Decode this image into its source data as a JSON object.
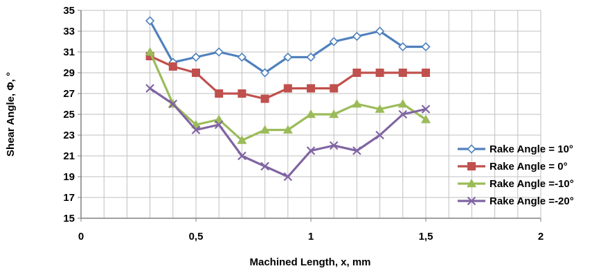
{
  "chart_data": {
    "type": "line",
    "title": "",
    "xlabel": "Machined Length, x, mm",
    "ylabel": "Shear Angle, Φ, °",
    "xlim": [
      0,
      2
    ],
    "ylim": [
      15,
      35
    ],
    "x_ticks": [
      0,
      0.5,
      1,
      1.5,
      2
    ],
    "x_tick_labels": [
      "0",
      "0,5",
      "1",
      "1,5",
      "2"
    ],
    "y_ticks": [
      15,
      17,
      19,
      21,
      23,
      25,
      27,
      29,
      31,
      33,
      35
    ],
    "y_tick_labels": [
      "15",
      "17",
      "19",
      "21",
      "23",
      "25",
      "27",
      "29",
      "31",
      "33",
      "35"
    ],
    "x_minor_step": 0.1,
    "grid": true,
    "legend_position": "right",
    "x": [
      0.3,
      0.4,
      0.5,
      0.6,
      0.7,
      0.8,
      0.9,
      1.0,
      1.1,
      1.2,
      1.3,
      1.4,
      1.5
    ],
    "series": [
      {
        "name": "Rake Angle = 10°",
        "color": "#4f81bd",
        "marker": "diamond-open",
        "values": [
          34,
          30,
          30.5,
          31,
          30.5,
          29,
          30.5,
          30.5,
          32,
          32.5,
          33,
          31.5,
          31.5
        ]
      },
      {
        "name": "Rake Angle = 0°",
        "color": "#c0504d",
        "marker": "square",
        "values": [
          30.6,
          29.6,
          29,
          27,
          27,
          26.5,
          27.5,
          27.5,
          27.5,
          29,
          29,
          29,
          29
        ]
      },
      {
        "name": "Rake Angle =-10°",
        "color": "#9bbb59",
        "marker": "triangle",
        "values": [
          31,
          26,
          24,
          24.5,
          22.5,
          23.5,
          23.5,
          25,
          25,
          26,
          25.5,
          26,
          24.5
        ]
      },
      {
        "name": "Rake Angle =-20°",
        "color": "#8064a2",
        "marker": "x",
        "values": [
          27.5,
          26,
          23.5,
          24,
          21,
          20,
          19,
          21.5,
          22,
          21.5,
          23,
          25,
          25.5
        ]
      }
    ]
  }
}
